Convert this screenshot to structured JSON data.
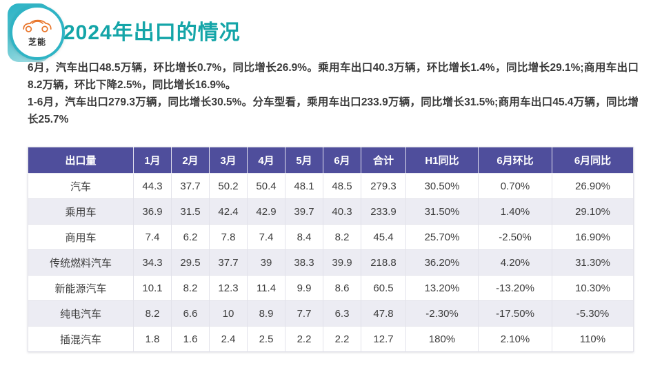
{
  "slide": {
    "logo": {
      "brand": "芝能"
    },
    "title": "2024年出口的情况",
    "paragraphs": [
      "6月，汽车出口48.5万辆，环比增长0.7%，同比增长26.9%。乘用车出口40.3万辆，环比增长1.4%，同比增长29.1%;商用车出口8.2万辆，环比下降2.5%，同比增长16.9%。",
      "1-6月，汽车出口279.3万辆，同比增长30.5%。分车型看，乘用车出口233.9万辆，同比增长31.5%;商用车出口45.4万辆，同比增长25.7%"
    ]
  },
  "table": {
    "columns": [
      "出口量",
      "1月",
      "2月",
      "3月",
      "4月",
      "5月",
      "6月",
      "合计",
      "H1同比",
      "6月环比",
      "6月同比"
    ],
    "rows": [
      [
        "汽车",
        "44.3",
        "37.7",
        "50.2",
        "50.4",
        "48.1",
        "48.5",
        "279.3",
        "30.50%",
        "0.70%",
        "26.90%"
      ],
      [
        "乘用车",
        "36.9",
        "31.5",
        "42.4",
        "42.9",
        "39.7",
        "40.3",
        "233.9",
        "31.50%",
        "1.40%",
        "29.10%"
      ],
      [
        "商用车",
        "7.4",
        "6.2",
        "7.8",
        "7.4",
        "8.4",
        "8.2",
        "45.4",
        "25.70%",
        "-2.50%",
        "16.90%"
      ],
      [
        "传统燃料汽车",
        "34.3",
        "29.5",
        "37.7",
        "39",
        "38.3",
        "39.9",
        "218.8",
        "36.20%",
        "4.20%",
        "31.30%"
      ],
      [
        "新能源汽车",
        "10.1",
        "8.2",
        "12.3",
        "11.4",
        "9.9",
        "8.6",
        "60.5",
        "13.20%",
        "-13.20%",
        "10.30%"
      ],
      [
        "纯电汽车",
        "8.2",
        "6.6",
        "10",
        "8.9",
        "7.7",
        "6.3",
        "47.8",
        "-2.30%",
        "-17.50%",
        "-5.30%"
      ],
      [
        "插混汽车",
        "1.8",
        "1.6",
        "2.4",
        "2.5",
        "2.2",
        "2.2",
        "12.7",
        "180%",
        "2.10%",
        "110%"
      ]
    ]
  },
  "colors": {
    "title_teal": "#14A5A8",
    "badge_teal": "#2AB3C6",
    "header_purple": "#4F4E9C",
    "row_alt": "#ECECF3",
    "car_orange": "#E9762B"
  }
}
